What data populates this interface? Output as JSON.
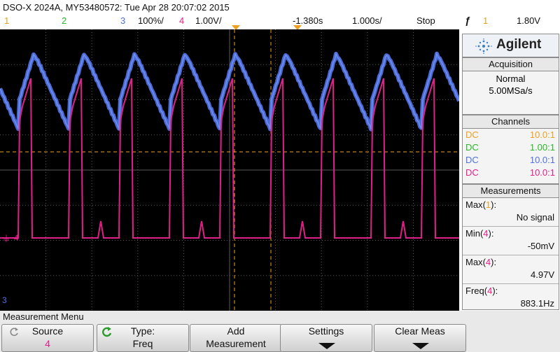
{
  "header": {
    "model_info": "DSO-X 2024A, MY53480572: Tue Apr 28 20:07:02 2015",
    "ch1_num": "1",
    "ch2_num": "2",
    "ch3_num": "3",
    "ch3_scale": "100%/",
    "ch4_num": "4",
    "ch4_scale": "1.00V/",
    "time_delay": "-1.380s",
    "timebase": "1.000s/",
    "run_state": "Stop",
    "trigger_symbol": "ƒ",
    "trigger_source": "1",
    "trigger_level": "1.80V"
  },
  "brand": {
    "name": "Agilent"
  },
  "acquisition": {
    "title": "Acquisition",
    "mode": "Normal",
    "rate": "5.00MSa/s"
  },
  "channels": {
    "title": "Channels",
    "items": [
      {
        "coupling": "DC",
        "probe": "10.0:1",
        "color": "#f0a020"
      },
      {
        "coupling": "DC",
        "probe": "1.00:1",
        "color": "#28b828"
      },
      {
        "coupling": "DC",
        "probe": "10.0:1",
        "color": "#5070e0"
      },
      {
        "coupling": "DC",
        "probe": "10.0:1",
        "color": "#e0208a"
      }
    ]
  },
  "measurements": {
    "title": "Measurements",
    "items": [
      {
        "label": "Max",
        "ch": "1",
        "value": "No signal",
        "color": "#f0a020"
      },
      {
        "label": "Min",
        "ch": "4",
        "value": "-50mV",
        "color": "#e0208a"
      },
      {
        "label": "Max",
        "ch": "4",
        "value": "4.97V",
        "color": "#e0208a"
      },
      {
        "label": "Freq",
        "ch": "4",
        "value": "883.1Hz",
        "color": "#e0208a"
      }
    ]
  },
  "screen": {
    "ch4_marker": "4",
    "ch3_marker": "3",
    "ch3_color": "#5070e0",
    "ch4_color": "#e0208a",
    "ch1_color": "#f0a020"
  },
  "menu": {
    "title": "Measurement Menu",
    "softkeys": [
      {
        "l1": "Source",
        "l2": "4"
      },
      {
        "l1": "Type:",
        "l2": "Freq"
      },
      {
        "l1": "Add",
        "l2": "Measurement"
      },
      {
        "l1": "Settings",
        "l2": ""
      },
      {
        "l1": "Clear Meas",
        "l2": ""
      }
    ]
  }
}
